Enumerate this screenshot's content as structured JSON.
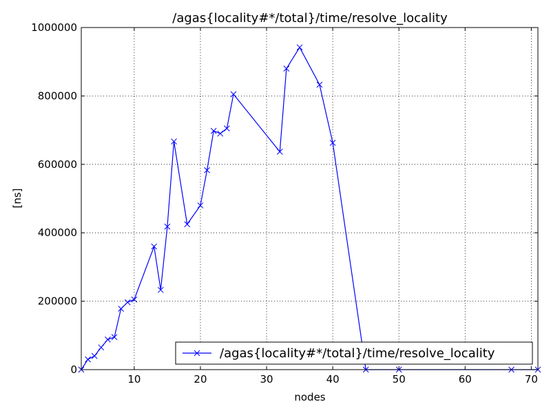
{
  "chart_data": {
    "type": "line",
    "title": "/agas{locality#*/total}/time/resolve_locality",
    "x_label": "nodes",
    "y_label": "[ns]",
    "x": [
      2,
      3,
      4,
      5,
      6,
      7,
      8,
      9,
      10,
      13,
      14,
      15,
      16,
      18,
      20,
      21,
      22,
      23,
      24,
      25,
      32,
      33,
      35,
      38,
      40,
      45,
      50,
      67,
      71
    ],
    "series": [
      {
        "name": "/agas{locality#*/total}/time/resolve_locality",
        "color": "#0000ff",
        "values": [
          0,
          30000,
          40000,
          65000,
          88000,
          95000,
          178000,
          197000,
          205000,
          360000,
          233000,
          418000,
          667000,
          425000,
          480000,
          583000,
          698000,
          690000,
          705000,
          805000,
          637000,
          880000,
          942000,
          833000,
          663000,
          0,
          0,
          0,
          0
        ]
      }
    ],
    "xlim": [
      2,
      71
    ],
    "xticks": [
      10,
      20,
      30,
      40,
      50,
      60,
      70
    ],
    "ylim": [
      0,
      1000000
    ],
    "yticks": [
      0,
      200000,
      400000,
      600000,
      800000,
      1000000
    ],
    "grid": true,
    "legend": "lower right",
    "marker": "x"
  }
}
